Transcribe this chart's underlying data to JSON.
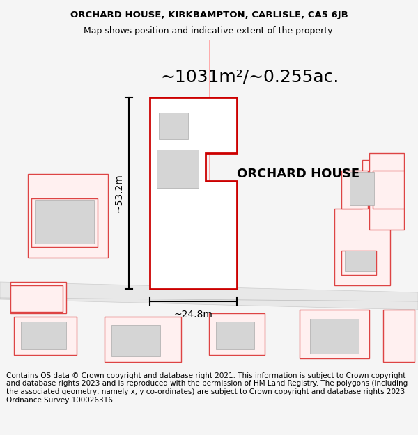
{
  "title_line1": "ORCHARD HOUSE, KIRKBAMPTON, CARLISLE, CA5 6JB",
  "title_line2": "Map shows position and indicative extent of the property.",
  "area_text": "~1031m²/~0.255ac.",
  "label_height": "~53.2m",
  "label_width": "~24.8m",
  "property_label": "ORCHARD HOUSE",
  "footer_text": "Contains OS data © Crown copyright and database right 2021. This information is subject to Crown copyright and database rights 2023 and is reproduced with the permission of HM Land Registry. The polygons (including the associated geometry, namely x, y co-ordinates) are subject to Crown copyright and database rights 2023 Ordnance Survey 100026316.",
  "bg_color": "#f5f5f5",
  "map_bg": "#ffffff",
  "road_color": "#d0d0d0",
  "plot_color_fill": "#ffffff",
  "plot_color_stroke": "#cc0000",
  "other_plots_color": "#ffcccc",
  "building_fill": "#d8d8d8",
  "title_fontsize": 9.5,
  "subtitle_fontsize": 9,
  "area_fontsize": 18,
  "label_fontsize": 9,
  "property_label_fontsize": 13,
  "footer_fontsize": 7.5
}
